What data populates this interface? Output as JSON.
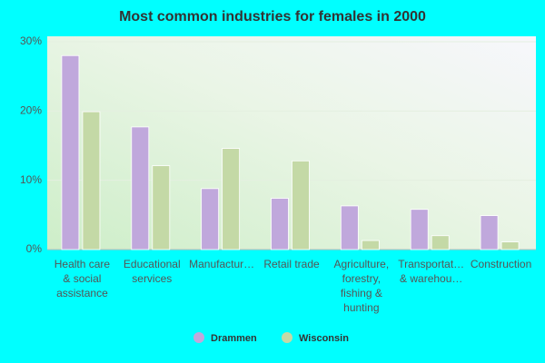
{
  "chart_data": {
    "type": "bar",
    "title": "Most common industries for females in 2000",
    "categories": [
      [
        "Health care",
        "& social",
        "assistance"
      ],
      [
        "Educational",
        "services"
      ],
      [
        "Manufactur…"
      ],
      [
        "Retail trade"
      ],
      [
        "Agriculture,",
        "forestry,",
        "fishing &",
        "hunting"
      ],
      [
        "Transportat…",
        "& warehou…"
      ],
      [
        "Construction"
      ]
    ],
    "series": [
      {
        "name": "Drammen",
        "color": "#c0a8dc",
        "values": [
          28.0,
          17.7,
          8.8,
          7.4,
          6.3,
          5.8,
          4.9
        ]
      },
      {
        "name": "Wisconsin",
        "color": "#c4d9a6",
        "values": [
          19.9,
          12.1,
          14.6,
          12.8,
          1.3,
          2.0,
          1.1
        ]
      }
    ],
    "ylim": [
      0,
      30
    ],
    "yticks": [
      {
        "value": 0,
        "label": "0%"
      },
      {
        "value": 10,
        "label": "10%"
      },
      {
        "value": 20,
        "label": "20%"
      },
      {
        "value": 30,
        "label": "30%"
      }
    ],
    "grid": true
  }
}
